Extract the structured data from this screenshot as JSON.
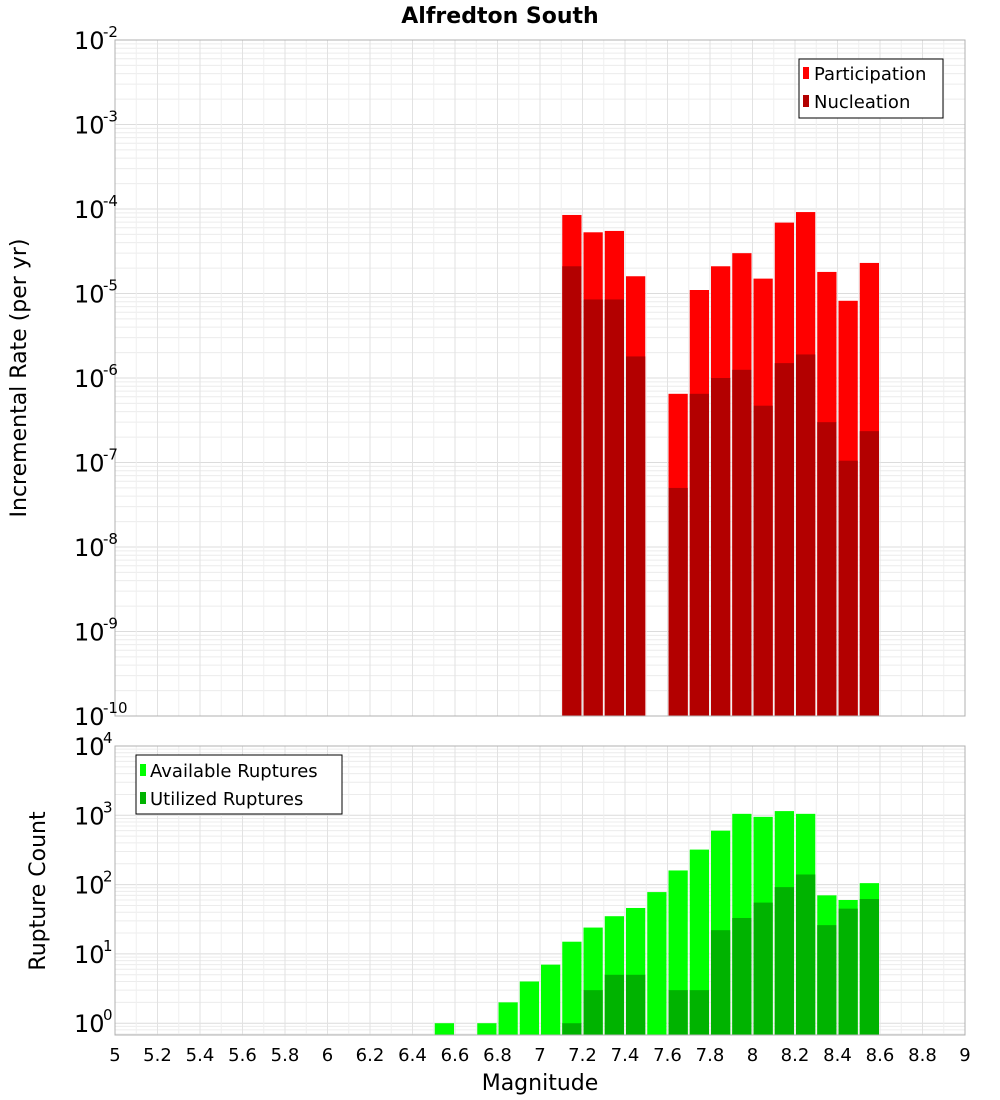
{
  "chart_data": {
    "title": "Alfredton South",
    "xlabel": "Magnitude",
    "xlim": [
      5,
      9
    ],
    "x_ticks": [
      "5",
      "5.2",
      "5.4",
      "5.6",
      "5.8",
      "6",
      "6.2",
      "6.4",
      "6.6",
      "6.8",
      "7",
      "7.2",
      "7.4",
      "7.6",
      "7.8",
      "8",
      "8.2",
      "8.4",
      "8.6",
      "8.8",
      "9"
    ],
    "panels": [
      {
        "id": "rate",
        "type": "bar",
        "yscale": "log",
        "ylabel": "Incremental Rate (per yr)",
        "ylim_exp": [
          -10,
          -2
        ],
        "y_tick_base": "10",
        "y_tick_exps": [
          "-10",
          "-9",
          "-8",
          "-7",
          "-6",
          "-5",
          "-4",
          "-3",
          "-2"
        ],
        "legend": {
          "position": "top-right",
          "entries": [
            "Participation",
            "Nucleation"
          ]
        },
        "colors": {
          "Participation": "#ff0000",
          "Nucleation": "#b30000"
        },
        "x": [
          7.15,
          7.25,
          7.35,
          7.45,
          7.65,
          7.75,
          7.85,
          7.95,
          8.05,
          8.15,
          8.25,
          8.35,
          8.45,
          8.55
        ],
        "series": [
          {
            "name": "Participation",
            "values": [
              8.5e-05,
              5.3e-05,
              5.5e-05,
              1.6e-05,
              6.5e-07,
              1.1e-05,
              2.1e-05,
              3e-05,
              1.5e-05,
              6.9e-05,
              9.2e-05,
              1.8e-05,
              8.2e-06,
              2.3e-05
            ]
          },
          {
            "name": "Nucleation",
            "values": [
              2.1e-05,
              8.5e-06,
              8.5e-06,
              1.8e-06,
              5e-08,
              6.5e-07,
              1e-06,
              1.25e-06,
              4.7e-07,
              1.5e-06,
              1.9e-06,
              3e-07,
              1.05e-07,
              2.35e-07
            ]
          }
        ]
      },
      {
        "id": "count",
        "type": "bar",
        "yscale": "log",
        "ylabel": "Rupture Count",
        "ylim_exp": [
          -0.17,
          4
        ],
        "y_tick_base": "10",
        "y_tick_exps": [
          "0",
          "1",
          "2",
          "3",
          "4"
        ],
        "legend": {
          "position": "top-left",
          "entries": [
            "Available Ruptures",
            "Utilized Ruptures"
          ]
        },
        "colors": {
          "Available Ruptures": "#00ff00",
          "Utilized Ruptures": "#00b300"
        },
        "x": [
          6.55,
          6.75,
          6.85,
          6.95,
          7.05,
          7.15,
          7.25,
          7.35,
          7.45,
          7.55,
          7.65,
          7.75,
          7.85,
          7.95,
          8.05,
          8.15,
          8.25,
          8.35,
          8.45,
          8.55
        ],
        "series": [
          {
            "name": "Available Ruptures",
            "values": [
              1,
              1,
              2,
              4,
              7,
              15,
              24,
              35,
              46,
              78,
              160,
              320,
              600,
              1050,
              950,
              1150,
              1050,
              70,
              60,
              105
            ]
          },
          {
            "name": "Utilized Ruptures",
            "values": [
              0,
              0,
              0,
              0,
              0,
              1,
              3,
              5,
              5,
              0,
              3,
              3,
              22,
              33,
              55,
              92,
              140,
              26,
              45,
              62
            ]
          }
        ]
      }
    ]
  }
}
